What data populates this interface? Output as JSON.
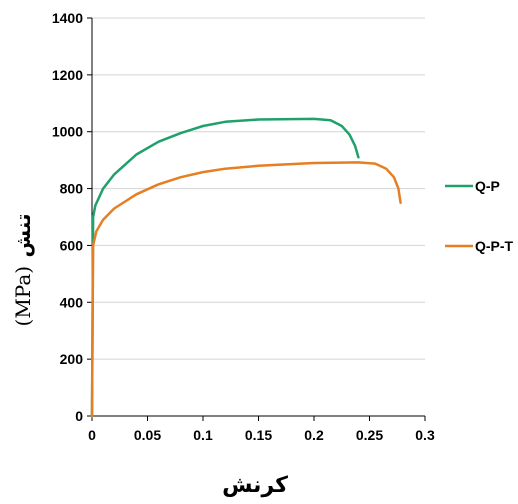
{
  "chart_data": {
    "type": "line",
    "title": "",
    "xlabel": "کرنش",
    "ylabel": {
      "unit": "(MPa)",
      "word": "تنش"
    },
    "xlim": [
      0,
      0.3
    ],
    "ylim": [
      0,
      1400
    ],
    "x_ticks": [
      "0",
      "0.05",
      "0.1",
      "0.15",
      "0.2",
      "0.25",
      "0.3"
    ],
    "y_ticks": [
      "0",
      "200",
      "400",
      "600",
      "800",
      "1000",
      "1200",
      "1400"
    ],
    "grid": "horizontal",
    "legend_position": "right",
    "series": [
      {
        "name": "Q-P",
        "color": "#21a06b",
        "points": [
          [
            0,
            0
          ],
          [
            0.001,
            700
          ],
          [
            0.003,
            740
          ],
          [
            0.01,
            800
          ],
          [
            0.02,
            850
          ],
          [
            0.04,
            920
          ],
          [
            0.06,
            965
          ],
          [
            0.08,
            995
          ],
          [
            0.1,
            1020
          ],
          [
            0.12,
            1035
          ],
          [
            0.15,
            1043
          ],
          [
            0.2,
            1045
          ],
          [
            0.215,
            1040
          ],
          [
            0.225,
            1020
          ],
          [
            0.232,
            990
          ],
          [
            0.237,
            950
          ],
          [
            0.24,
            910
          ]
        ]
      },
      {
        "name": "Q-P-T",
        "color": "#e67e22",
        "points": [
          [
            0,
            0
          ],
          [
            0.001,
            600
          ],
          [
            0.004,
            650
          ],
          [
            0.01,
            690
          ],
          [
            0.02,
            730
          ],
          [
            0.04,
            780
          ],
          [
            0.06,
            815
          ],
          [
            0.08,
            840
          ],
          [
            0.1,
            858
          ],
          [
            0.12,
            870
          ],
          [
            0.15,
            880
          ],
          [
            0.2,
            890
          ],
          [
            0.24,
            892
          ],
          [
            0.255,
            888
          ],
          [
            0.265,
            870
          ],
          [
            0.272,
            840
          ],
          [
            0.276,
            800
          ],
          [
            0.278,
            750
          ]
        ]
      }
    ]
  }
}
